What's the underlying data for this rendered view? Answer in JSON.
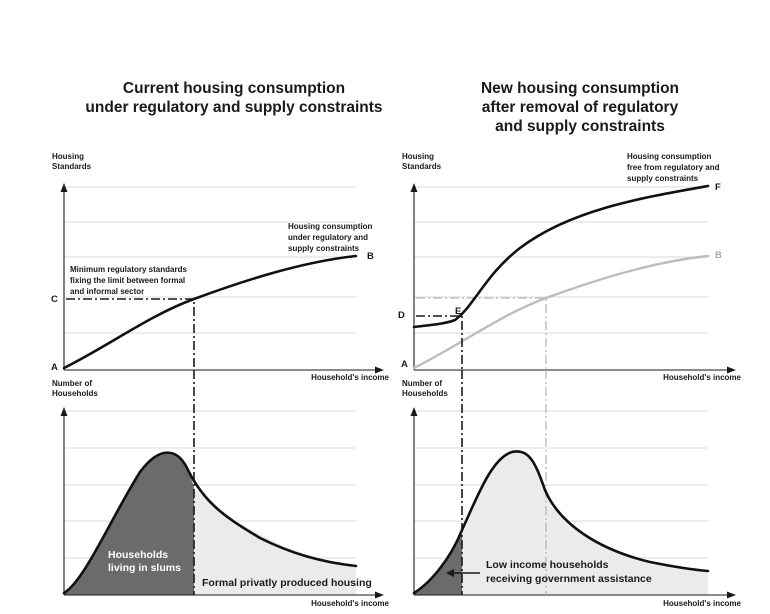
{
  "left": {
    "title_line1": "Current housing consumption",
    "title_line2": "under regulatory and supply constraints",
    "top": {
      "ylabel_line1": "Housing",
      "ylabel_line2": "Standards",
      "xlabel": "Household's income",
      "curve_note_line1": "Housing consumption",
      "curve_note_line2": "under regulatory and",
      "curve_note_line3": "supply constraints",
      "min_note_line1": "Minimum regulatory standards",
      "min_note_line2": "fixing the limit between formal",
      "min_note_line3": "and informal sector",
      "point_a": "A",
      "point_b": "B",
      "point_c": "C"
    },
    "bottom": {
      "ylabel_line1": "Number of",
      "ylabel_line2": "Households",
      "xlabel": "Household's income",
      "slum_line1": "Households",
      "slum_line2": "living in slums",
      "formal_label": "Formal privatly produced housing"
    }
  },
  "right": {
    "title_line1": "New housing consumption",
    "title_line2": "after removal of regulatory",
    "title_line3": "and supply constraints",
    "top": {
      "ylabel_line1": "Housing",
      "ylabel_line2": "Standards",
      "xlabel": "Household's income",
      "curve_note_line1": "Housing consumption",
      "curve_note_line2": "free from regulatory and",
      "curve_note_line3": "supply constraints",
      "point_a": "A",
      "point_b": "B",
      "point_d": "D",
      "point_e": "E",
      "point_f": "F"
    },
    "bottom": {
      "ylabel_line1": "Number of",
      "ylabel_line2": "Households",
      "xlabel": "Household's income",
      "assist_line1": "Low income households",
      "assist_line2": "receiving government assistance"
    }
  },
  "colors": {
    "curve": "#111111",
    "grid": "#cfcfcf",
    "slum_fill": "#6b6b6b",
    "formal_fill": "#ebebeb",
    "old_curve": "#bdbdbd"
  }
}
